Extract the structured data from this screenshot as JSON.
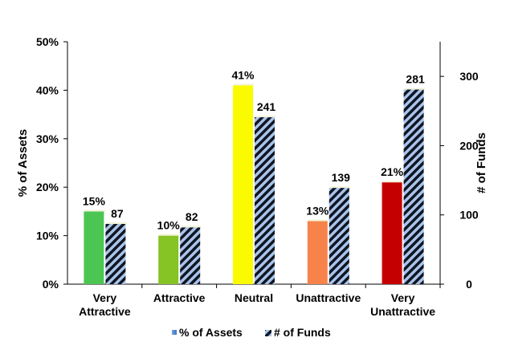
{
  "chart_data": {
    "type": "bar",
    "categories": [
      [
        "Very",
        "Attractive"
      ],
      [
        "Attractive"
      ],
      [
        "Neutral"
      ],
      [
        "Unattractive"
      ],
      [
        "Very",
        "Unattractive"
      ]
    ],
    "category_colors": [
      "#4cc653",
      "#86c325",
      "#fbfb00",
      "#f7834a",
      "#c40000"
    ],
    "series": [
      {
        "name": "% of Assets",
        "axis": "left",
        "values": [
          15,
          10,
          41,
          13,
          21
        ],
        "labels": [
          "15%",
          "10%",
          "41%",
          "13%",
          "21%"
        ]
      },
      {
        "name": "# of Funds",
        "axis": "right",
        "pattern": "diagonal-stripes",
        "colors": [
          "#a9c4ea",
          "#101522"
        ],
        "values": [
          87,
          82,
          241,
          139,
          281
        ],
        "labels": [
          "87",
          "82",
          "241",
          "139",
          "281"
        ]
      }
    ],
    "ylabel": "% of Assets",
    "ylabel_right": "# of Funds",
    "ylim": [
      0,
      50
    ],
    "ylim_right": [
      0,
      350
    ],
    "yticks": [
      "0%",
      "10%",
      "20%",
      "30%",
      "40%",
      "50%"
    ],
    "yticks_values": [
      0,
      10,
      20,
      30,
      40,
      50
    ],
    "yticks_right": [
      "0",
      "100",
      "200",
      "300"
    ],
    "yticks_right_values": [
      0,
      100,
      200,
      300
    ],
    "grid": false,
    "legend": "bottom"
  }
}
